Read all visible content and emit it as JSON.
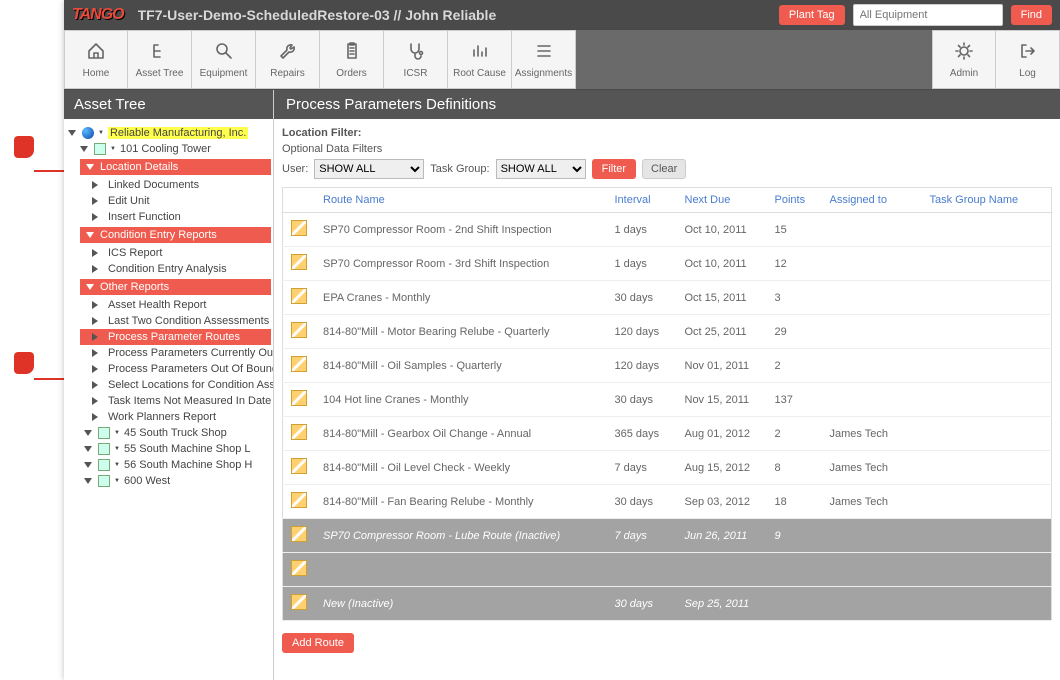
{
  "colors": {
    "accent": "#ef5b4f",
    "toolbar_bg": "#6a6a6a",
    "topbar_bg": "#4a4a4a",
    "highlight": "#ffff4d",
    "link": "#4a7ccf",
    "inactive_row": "#a3a3a3"
  },
  "topbar": {
    "logo_text": "TANGO",
    "breadcrumb": "TF7-User-Demo-ScheduledRestore-03  // John Reliable",
    "plant_tag_label": "Plant Tag",
    "search_placeholder": "All Equipment",
    "find_label": "Find"
  },
  "toolbar": {
    "items": [
      {
        "label": "Home",
        "icon": "home-icon"
      },
      {
        "label": "Asset Tree",
        "icon": "tree-icon"
      },
      {
        "label": "Equipment",
        "icon": "search-icon"
      },
      {
        "label": "Repairs",
        "icon": "wrench-icon"
      },
      {
        "label": "Orders",
        "icon": "clipboard-icon"
      },
      {
        "label": "ICSR",
        "icon": "stethoscope-icon"
      },
      {
        "label": "Root Cause",
        "icon": "bars-icon"
      },
      {
        "label": "Assignments",
        "icon": "list-icon"
      }
    ],
    "right_items": [
      {
        "label": "Admin",
        "icon": "gear-icon"
      },
      {
        "label": "Log",
        "icon": "logout-icon"
      }
    ]
  },
  "sidebar": {
    "title": "Asset Tree",
    "root": "Reliable Manufacturing, Inc.",
    "selected_node": "101 Cooling Tower",
    "sections": [
      {
        "header": "Location Details",
        "items": [
          "Linked Documents",
          "Edit Unit",
          "Insert Function"
        ]
      },
      {
        "header": "Condition Entry Reports",
        "items": [
          "ICS Report",
          "Condition Entry Analysis"
        ]
      },
      {
        "header": "Other Reports",
        "items": [
          "Asset Health Report",
          "Last Two Condition Assessments",
          "Process Parameter Routes",
          "Process Parameters Currently Out of Boun",
          "Process Parameters Out Of Bounds History",
          "Select Locations for Condition Assessment",
          "Task Items Not Measured In Date Range",
          "Work Planners Report"
        ],
        "selected_index": 2
      }
    ],
    "siblings": [
      "45 South Truck Shop",
      "55 South Machine Shop L",
      "56 South Machine Shop H",
      "600 West"
    ]
  },
  "content": {
    "title": "Process Parameters Definitions",
    "location_filter_label": "Location Filter:",
    "optional_filters_label": "Optional Data Filters",
    "user_label": "User:",
    "user_value": "SHOW ALL",
    "taskgroup_label": "Task Group:",
    "taskgroup_value": "SHOW ALL",
    "filter_btn": "Filter",
    "clear_btn": "Clear",
    "add_route_btn": "Add Route",
    "table": {
      "columns": [
        "",
        "Route Name",
        "Interval",
        "Next Due",
        "Points",
        "Assigned to",
        "Task Group Name"
      ],
      "column_widths": [
        "26px",
        "auto",
        "70px",
        "90px",
        "55px",
        "100px",
        "130px"
      ],
      "rows": [
        {
          "name": "SP70 Compressor Room - 2nd Shift Inspection",
          "interval": "1 days",
          "due": "Oct 10, 2011",
          "points": "15",
          "assigned": "",
          "group": "",
          "inactive": false
        },
        {
          "name": "SP70 Compressor Room - 3rd Shift Inspection",
          "interval": "1 days",
          "due": "Oct 10, 2011",
          "points": "12",
          "assigned": "",
          "group": "",
          "inactive": false
        },
        {
          "name": "EPA Cranes - Monthly",
          "interval": "30 days",
          "due": "Oct 15, 2011",
          "points": "3",
          "assigned": "",
          "group": "",
          "inactive": false
        },
        {
          "name": "814-80\"Mill - Motor Bearing Relube - Quarterly",
          "interval": "120 days",
          "due": "Oct 25, 2011",
          "points": "29",
          "assigned": "",
          "group": "",
          "inactive": false
        },
        {
          "name": "814-80\"Mill - Oil Samples - Quarterly",
          "interval": "120 days",
          "due": "Nov 01, 2011",
          "points": "2",
          "assigned": "",
          "group": "",
          "inactive": false
        },
        {
          "name": "104 Hot line Cranes - Monthly",
          "interval": "30 days",
          "due": "Nov 15, 2011",
          "points": "137",
          "assigned": "",
          "group": "",
          "inactive": false
        },
        {
          "name": "814-80\"Mill - Gearbox Oil Change - Annual",
          "interval": "365 days",
          "due": "Aug 01, 2012",
          "points": "2",
          "assigned": "James Tech",
          "group": "",
          "inactive": false
        },
        {
          "name": "814-80\"Mill - Oil Level Check - Weekly",
          "interval": "7 days",
          "due": "Aug 15, 2012",
          "points": "8",
          "assigned": "James Tech",
          "group": "",
          "inactive": false
        },
        {
          "name": "814-80\"Mill - Fan Bearing Relube - Monthly",
          "interval": "30 days",
          "due": "Sep 03, 2012",
          "points": "18",
          "assigned": "James Tech",
          "group": "",
          "inactive": false
        },
        {
          "name": "SP70 Compressor Room - Lube Route (Inactive)",
          "interval": "7 days",
          "due": "Jun 26, 2011",
          "points": "9",
          "assigned": "",
          "group": "",
          "inactive": true
        },
        {
          "name": " ",
          "interval": " ",
          "due": " ",
          "points": " ",
          "assigned": "",
          "group": "",
          "inactive": true
        },
        {
          "name": "New (Inactive)",
          "interval": "30 days",
          "due": "Sep 25, 2011",
          "points": "",
          "assigned": "",
          "group": "",
          "inactive": true
        }
      ]
    }
  }
}
